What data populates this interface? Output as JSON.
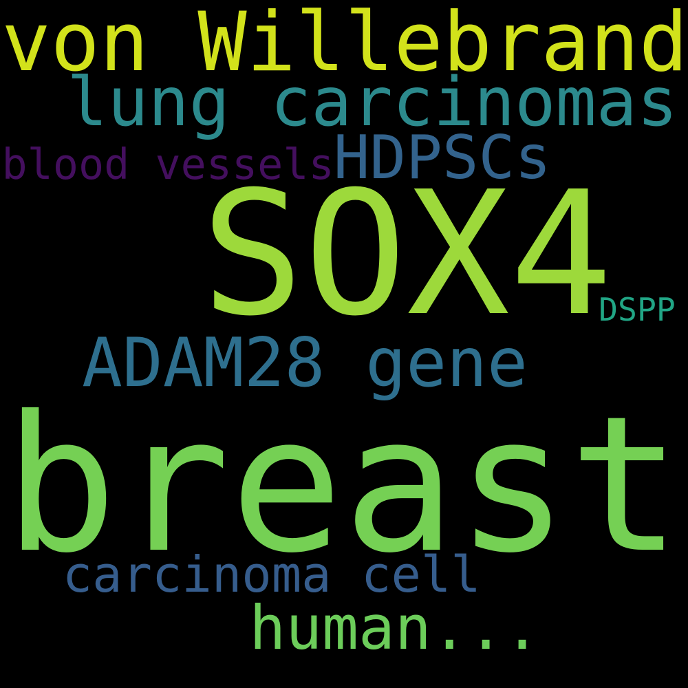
{
  "background": "#000000",
  "words": [
    {
      "id": "word-von-willebrand",
      "text": "von Willebrand",
      "color": "#d2e21b"
    },
    {
      "id": "word-lung-carcinomas",
      "text": "lung carcinomas",
      "color": "#2c8a8d"
    },
    {
      "id": "word-hdpscs",
      "text": "HDPSCs",
      "color": "#33638d"
    },
    {
      "id": "word-blood-vessels",
      "text": "blood vessels",
      "color": "#440f5e"
    },
    {
      "id": "word-sox4",
      "text": "SOX4",
      "color": "#9dd93b"
    },
    {
      "id": "word-dspp",
      "text": "DSPP",
      "color": "#21a585"
    },
    {
      "id": "word-adam28-gene",
      "text": "ADAM28 gene",
      "color": "#2e6f8e"
    },
    {
      "id": "word-breast",
      "text": "breast",
      "color": "#75d054"
    },
    {
      "id": "word-carcinoma-cell",
      "text": "carcinoma cell",
      "color": "#365d8d"
    },
    {
      "id": "word-human",
      "text": "human...",
      "color": "#6ccd5a"
    }
  ]
}
